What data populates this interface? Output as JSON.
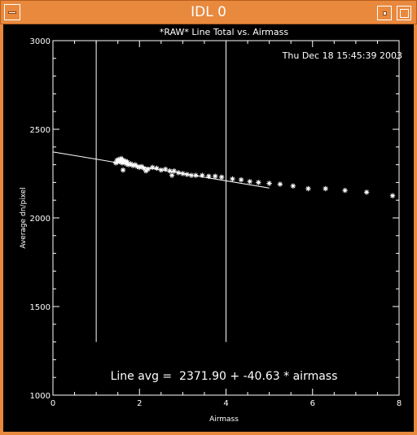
{
  "window": {
    "title": "IDL 0",
    "menu_icon": "window-menu-icon",
    "minimize_icon": "minimize-icon",
    "maximize_icon": "maximize-icon"
  },
  "colors": {
    "titlebar": "#e8893e",
    "plot_background": "#000000",
    "plot_foreground": "#ffffff"
  },
  "timestamp": "Thu Dec 18 15:45:39 2003",
  "chart_data": {
    "type": "scatter",
    "title": "*RAW* Line Total vs. Airmass",
    "xlabel": "Airmass",
    "ylabel": "Average dn/pixel",
    "xlim": [
      0,
      8
    ],
    "ylim": [
      1000,
      3000
    ],
    "x_ticks": [
      "0",
      "2",
      "4",
      "6",
      "8"
    ],
    "y_ticks": [
      "1000",
      "1500",
      "2000",
      "2500",
      "3000"
    ],
    "grid": false,
    "points": [
      {
        "x": 1.45,
        "y": 2310
      },
      {
        "x": 1.48,
        "y": 2325
      },
      {
        "x": 1.5,
        "y": 2315
      },
      {
        "x": 1.52,
        "y": 2330
      },
      {
        "x": 1.55,
        "y": 2320
      },
      {
        "x": 1.58,
        "y": 2335
      },
      {
        "x": 1.6,
        "y": 2310
      },
      {
        "x": 1.62,
        "y": 2325
      },
      {
        "x": 1.65,
        "y": 2315
      },
      {
        "x": 1.68,
        "y": 2320
      },
      {
        "x": 1.7,
        "y": 2305
      },
      {
        "x": 1.72,
        "y": 2315
      },
      {
        "x": 1.75,
        "y": 2300
      },
      {
        "x": 1.62,
        "y": 2270
      },
      {
        "x": 1.8,
        "y": 2305
      },
      {
        "x": 1.85,
        "y": 2295
      },
      {
        "x": 1.9,
        "y": 2300
      },
      {
        "x": 1.95,
        "y": 2290
      },
      {
        "x": 2.0,
        "y": 2285
      },
      {
        "x": 2.05,
        "y": 2290
      },
      {
        "x": 2.1,
        "y": 2280
      },
      {
        "x": 2.15,
        "y": 2265
      },
      {
        "x": 2.2,
        "y": 2275
      },
      {
        "x": 2.3,
        "y": 2285
      },
      {
        "x": 2.4,
        "y": 2280
      },
      {
        "x": 2.5,
        "y": 2270
      },
      {
        "x": 2.6,
        "y": 2275
      },
      {
        "x": 2.7,
        "y": 2265
      },
      {
        "x": 2.75,
        "y": 2240
      },
      {
        "x": 2.8,
        "y": 2265
      },
      {
        "x": 2.9,
        "y": 2255
      },
      {
        "x": 3.0,
        "y": 2250
      },
      {
        "x": 3.1,
        "y": 2245
      },
      {
        "x": 3.2,
        "y": 2240
      },
      {
        "x": 3.3,
        "y": 2240
      },
      {
        "x": 3.45,
        "y": 2240
      },
      {
        "x": 3.6,
        "y": 2235
      },
      {
        "x": 3.75,
        "y": 2235
      },
      {
        "x": 3.9,
        "y": 2230
      },
      {
        "x": 4.15,
        "y": 2220
      },
      {
        "x": 4.35,
        "y": 2215
      },
      {
        "x": 4.55,
        "y": 2205
      },
      {
        "x": 4.75,
        "y": 2200
      },
      {
        "x": 5.0,
        "y": 2195
      },
      {
        "x": 5.25,
        "y": 2190
      },
      {
        "x": 5.55,
        "y": 2180
      },
      {
        "x": 5.9,
        "y": 2165
      },
      {
        "x": 6.3,
        "y": 2165
      },
      {
        "x": 6.75,
        "y": 2155
      },
      {
        "x": 7.25,
        "y": 2145
      },
      {
        "x": 7.85,
        "y": 2125
      }
    ],
    "fit_line": {
      "intercept": 2371.9,
      "slope": -40.63,
      "x_range": [
        0,
        5
      ]
    },
    "vertical_markers": [
      {
        "x": 1.0,
        "y_range": [
          1300,
          3000
        ]
      },
      {
        "x": 4.0,
        "y_range": [
          1300,
          3000
        ]
      }
    ],
    "annotation": "Line avg =  2371.90 + -40.63 * airmass"
  }
}
